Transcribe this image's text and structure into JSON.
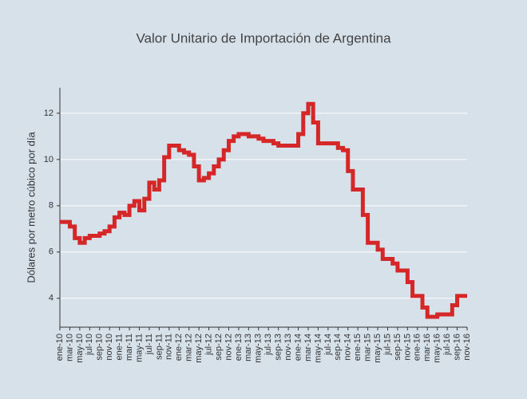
{
  "chart_data": {
    "type": "line",
    "step": true,
    "title": "Valor Unitario de Importación de Argentina",
    "y_label": "Dólares por metro cúbico por día",
    "categories": [
      "ene-10",
      null,
      "mar-10",
      null,
      "may-10",
      null,
      "jul-10",
      null,
      "sep-10",
      null,
      "nov-10",
      null,
      "ene-11",
      null,
      "mar-11",
      null,
      "may-11",
      null,
      "jul-11",
      null,
      "sep-11",
      null,
      "nov-11",
      null,
      "ene-12",
      null,
      "mar-12",
      null,
      "may-12",
      null,
      "jul-12",
      null,
      "sep-12",
      null,
      "nov-12",
      null,
      "ene-13",
      null,
      "mar-13",
      null,
      "may-13",
      null,
      "jul-13",
      null,
      "sep-13",
      null,
      "nov-13",
      null,
      "ene-14",
      null,
      "mar-14",
      null,
      "may-14",
      null,
      "jul-14",
      null,
      "sep-14",
      null,
      "nov-14",
      null,
      "ene-15",
      null,
      "mar-15",
      null,
      "may-15",
      null,
      "jul-15",
      null,
      "sep-15",
      null,
      "nov-15",
      null,
      "ene-16",
      null,
      "mar-16",
      null,
      "may-16",
      null,
      "jul-16",
      null,
      "sep-16",
      null,
      "nov-16"
    ],
    "series": [
      {
        "color": "#d62728",
        "values": [
          7.3,
          7.3,
          7.1,
          6.6,
          6.4,
          6.6,
          6.7,
          6.7,
          6.8,
          6.9,
          7.1,
          7.5,
          7.7,
          7.6,
          8.0,
          8.2,
          7.8,
          8.3,
          9.0,
          8.7,
          9.1,
          10.1,
          10.6,
          10.6,
          10.4,
          10.3,
          10.2,
          9.7,
          9.1,
          9.2,
          9.4,
          9.7,
          10.0,
          10.4,
          10.8,
          11.0,
          11.1,
          11.1,
          11.0,
          11.0,
          10.9,
          10.8,
          10.8,
          10.7,
          10.6,
          10.6,
          10.6,
          10.6,
          11.1,
          12.0,
          12.4,
          11.6,
          10.7,
          10.7,
          10.7,
          10.7,
          10.5,
          10.4,
          9.5,
          8.7,
          8.7,
          7.6,
          6.4,
          6.4,
          6.1,
          5.7,
          5.7,
          5.5,
          5.2,
          5.2,
          4.7,
          4.1,
          4.1,
          3.6,
          3.2,
          3.2,
          3.3,
          3.3,
          3.3,
          3.7,
          4.1,
          4.1,
          4.1
        ]
      }
    ],
    "ylim": [
      2.75,
      13.1
    ],
    "yticks": [
      4,
      6,
      8,
      10,
      12
    ],
    "grid": true
  }
}
